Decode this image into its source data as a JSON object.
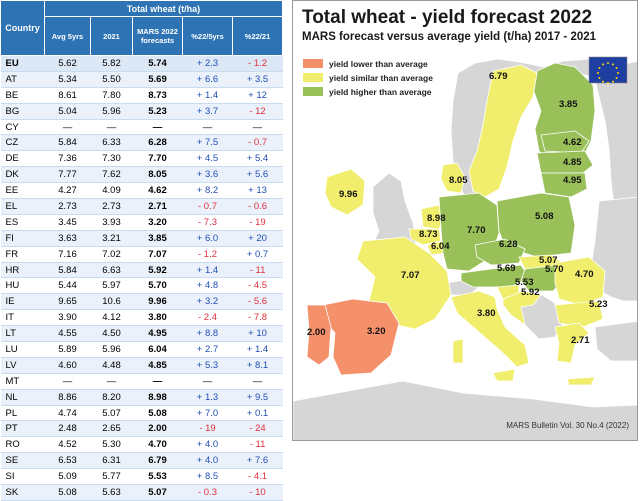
{
  "table": {
    "country_header": "Country",
    "group_header": "Total wheat (t/ha)",
    "columns": [
      "Avg 5yrs",
      "2021",
      "MARS 2022 forecasts",
      "%22/5yrs",
      "%22/21"
    ],
    "rows": [
      {
        "country": "EU",
        "avg5": "5.62",
        "y2021": "5.82",
        "fc": "5.74",
        "p5": "+ 2.3",
        "p21": "- 1.2"
      },
      {
        "country": "AT",
        "avg5": "5.34",
        "y2021": "5.50",
        "fc": "5.69",
        "p5": "+ 6.6",
        "p21": "+ 3.5"
      },
      {
        "country": "BE",
        "avg5": "8.61",
        "y2021": "7.80",
        "fc": "8.73",
        "p5": "+ 1.4",
        "p21": "+ 12"
      },
      {
        "country": "BG",
        "avg5": "5.04",
        "y2021": "5.96",
        "fc": "5.23",
        "p5": "+ 3.7",
        "p21": "- 12"
      },
      {
        "country": "CY",
        "avg5": "—",
        "y2021": "—",
        "fc": "—",
        "p5": "—",
        "p21": "—"
      },
      {
        "country": "CZ",
        "avg5": "5.84",
        "y2021": "6.33",
        "fc": "6.28",
        "p5": "+ 7.5",
        "p21": "- 0.7"
      },
      {
        "country": "DE",
        "avg5": "7.36",
        "y2021": "7.30",
        "fc": "7.70",
        "p5": "+ 4.5",
        "p21": "+ 5.4"
      },
      {
        "country": "DK",
        "avg5": "7.77",
        "y2021": "7.62",
        "fc": "8.05",
        "p5": "+ 3.6",
        "p21": "+ 5.6"
      },
      {
        "country": "EE",
        "avg5": "4.27",
        "y2021": "4.09",
        "fc": "4.62",
        "p5": "+ 8.2",
        "p21": "+ 13"
      },
      {
        "country": "EL",
        "avg5": "2.73",
        "y2021": "2.73",
        "fc": "2.71",
        "p5": "- 0.7",
        "p21": "- 0.6"
      },
      {
        "country": "ES",
        "avg5": "3.45",
        "y2021": "3.93",
        "fc": "3.20",
        "p5": "- 7.3",
        "p21": "- 19"
      },
      {
        "country": "FI",
        "avg5": "3.63",
        "y2021": "3.21",
        "fc": "3.85",
        "p5": "+ 6.0",
        "p21": "+ 20"
      },
      {
        "country": "FR",
        "avg5": "7.16",
        "y2021": "7.02",
        "fc": "7.07",
        "p5": "- 1.2",
        "p21": "+ 0.7"
      },
      {
        "country": "HR",
        "avg5": "5.84",
        "y2021": "6.63",
        "fc": "5.92",
        "p5": "+ 1.4",
        "p21": "- 11"
      },
      {
        "country": "HU",
        "avg5": "5.44",
        "y2021": "5.97",
        "fc": "5.70",
        "p5": "+ 4.8",
        "p21": "- 4.5"
      },
      {
        "country": "IE",
        "avg5": "9.65",
        "y2021": "10.6",
        "fc": "9.96",
        "p5": "+ 3.2",
        "p21": "- 5.6"
      },
      {
        "country": "IT",
        "avg5": "3.90",
        "y2021": "4.12",
        "fc": "3.80",
        "p5": "- 2.4",
        "p21": "- 7.8"
      },
      {
        "country": "LT",
        "avg5": "4.55",
        "y2021": "4.50",
        "fc": "4.95",
        "p5": "+ 8.8",
        "p21": "+ 10"
      },
      {
        "country": "LU",
        "avg5": "5.89",
        "y2021": "5.96",
        "fc": "6.04",
        "p5": "+ 2.7",
        "p21": "+ 1.4"
      },
      {
        "country": "LV",
        "avg5": "4.60",
        "y2021": "4.48",
        "fc": "4.85",
        "p5": "+ 5.3",
        "p21": "+ 8.1"
      },
      {
        "country": "MT",
        "avg5": "—",
        "y2021": "—",
        "fc": "—",
        "p5": "—",
        "p21": "—"
      },
      {
        "country": "NL",
        "avg5": "8.86",
        "y2021": "8.20",
        "fc": "8.98",
        "p5": "+ 1.3",
        "p21": "+ 9.5"
      },
      {
        "country": "PL",
        "avg5": "4.74",
        "y2021": "5.07",
        "fc": "5.08",
        "p5": "+ 7.0",
        "p21": "+ 0.1"
      },
      {
        "country": "PT",
        "avg5": "2.48",
        "y2021": "2.65",
        "fc": "2.00",
        "p5": "- 19",
        "p21": "- 24"
      },
      {
        "country": "RO",
        "avg5": "4.52",
        "y2021": "5.30",
        "fc": "4.70",
        "p5": "+ 4.0",
        "p21": "- 11"
      },
      {
        "country": "SE",
        "avg5": "6.53",
        "y2021": "6.31",
        "fc": "6.79",
        "p5": "+ 4.0",
        "p21": "+ 7.6"
      },
      {
        "country": "SI",
        "avg5": "5.09",
        "y2021": "5.77",
        "fc": "5.53",
        "p5": "+ 8.5",
        "p21": "- 4.1"
      },
      {
        "country": "SK",
        "avg5": "5.08",
        "y2021": "5.63",
        "fc": "5.07",
        "p5": "- 0.3",
        "p21": "- 10"
      }
    ]
  },
  "map": {
    "title": "Total wheat - yield forecast 2022",
    "subtitle": "MARS forecast versus average yield (t/ha) 2017 - 2021",
    "legend": [
      {
        "label": "yield lower than average",
        "color": "#f4906a"
      },
      {
        "label": "yield similar than average",
        "color": "#f0ee6c"
      },
      {
        "label": "yield higher than average",
        "color": "#9ac05a"
      }
    ],
    "footer": "MARS Bulletin Vol. 30 No.4 (2022)",
    "colors": {
      "lower": "#f4906a",
      "similar": "#f0ee6c",
      "higher": "#9ac05a",
      "non_eu": "#d6d6d6",
      "sea": "#ffffff",
      "header_blue": "#2e74b5",
      "positive_text": "#1f4eb4",
      "negative_text": "#e0303a"
    },
    "regions": [
      {
        "code": "FI",
        "value": "3.85",
        "class": "higher"
      },
      {
        "code": "SE",
        "value": "6.79",
        "class": "similar"
      },
      {
        "code": "EE",
        "value": "4.62",
        "class": "higher"
      },
      {
        "code": "LV",
        "value": "4.85",
        "class": "higher"
      },
      {
        "code": "LT",
        "value": "4.95",
        "class": "higher"
      },
      {
        "code": "DK",
        "value": "8.05",
        "class": "similar"
      },
      {
        "code": "IE",
        "value": "9.96",
        "class": "similar"
      },
      {
        "code": "NL",
        "value": "8.98",
        "class": "similar"
      },
      {
        "code": "BE",
        "value": "8.73",
        "class": "similar"
      },
      {
        "code": "LU",
        "value": "6.04",
        "class": "similar"
      },
      {
        "code": "DE",
        "value": "7.70",
        "class": "higher"
      },
      {
        "code": "PL",
        "value": "5.08",
        "class": "higher"
      },
      {
        "code": "CZ",
        "value": "6.28",
        "class": "higher"
      },
      {
        "code": "SK",
        "value": "5.07",
        "class": "similar"
      },
      {
        "code": "AT",
        "value": "5.69",
        "class": "higher"
      },
      {
        "code": "HU",
        "value": "5.70",
        "class": "higher"
      },
      {
        "code": "SI",
        "value": "5.53",
        "class": "similar"
      },
      {
        "code": "HR",
        "value": "5.92",
        "class": "similar"
      },
      {
        "code": "RO",
        "value": "4.70",
        "class": "similar"
      },
      {
        "code": "BG",
        "value": "5.23",
        "class": "similar"
      },
      {
        "code": "FR",
        "value": "7.07",
        "class": "similar"
      },
      {
        "code": "IT",
        "value": "3.80",
        "class": "similar"
      },
      {
        "code": "ES",
        "value": "3.20",
        "class": "lower"
      },
      {
        "code": "PT",
        "value": "2.00",
        "class": "lower"
      },
      {
        "code": "EL",
        "value": "2.71",
        "class": "similar"
      }
    ]
  }
}
